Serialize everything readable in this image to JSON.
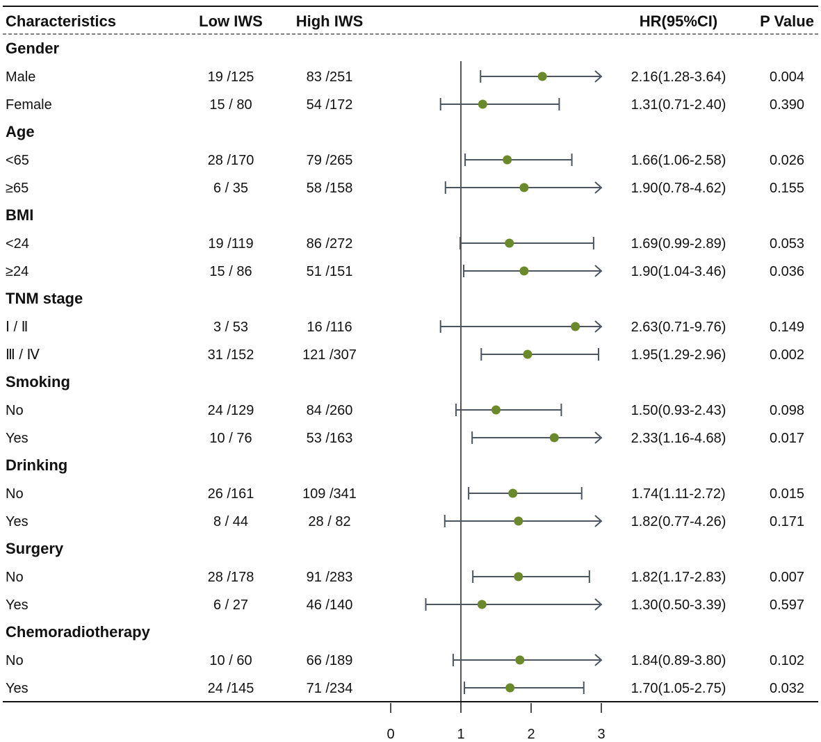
{
  "chart_data": {
    "type": "forest",
    "columns": {
      "characteristics": "Characteristics",
      "low": "Low IWS",
      "high": "High IWS",
      "hr": "HR(95%CI)",
      "p": "P Value"
    },
    "axis": {
      "xlim": [
        0,
        3
      ],
      "ticks": [
        0,
        1,
        2,
        3
      ],
      "reference_line": 1
    },
    "rows": [
      {
        "kind": "group",
        "label": "Gender"
      },
      {
        "kind": "item",
        "label": "Male",
        "low": "19 /125",
        "high": "83 /251",
        "hr": 2.16,
        "lo": 1.28,
        "hi": 3.64,
        "hr_text": "2.16(1.28-3.64)",
        "p": "0.004"
      },
      {
        "kind": "item",
        "label": "Female",
        "low": "15 / 80",
        "high": "54 /172",
        "hr": 1.31,
        "lo": 0.71,
        "hi": 2.4,
        "hr_text": "1.31(0.71-2.40)",
        "p": "0.390"
      },
      {
        "kind": "group",
        "label": "Age"
      },
      {
        "kind": "item",
        "label": "<65",
        "low": "28 /170",
        "high": "79 /265",
        "hr": 1.66,
        "lo": 1.06,
        "hi": 2.58,
        "hr_text": "1.66(1.06-2.58)",
        "p": "0.026"
      },
      {
        "kind": "item",
        "label": "≥65",
        "low": "6 / 35",
        "high": "58 /158",
        "hr": 1.9,
        "lo": 0.78,
        "hi": 4.62,
        "hr_text": "1.90(0.78-4.62)",
        "p": "0.155"
      },
      {
        "kind": "group",
        "label": "BMI"
      },
      {
        "kind": "item",
        "label": "<24",
        "low": "19 /119",
        "high": "86 /272",
        "hr": 1.69,
        "lo": 0.99,
        "hi": 2.89,
        "hr_text": "1.69(0.99-2.89)",
        "p": "0.053"
      },
      {
        "kind": "item",
        "label": "≥24",
        "low": "15 / 86",
        "high": "51 /151",
        "hr": 1.9,
        "lo": 1.04,
        "hi": 3.46,
        "hr_text": "1.90(1.04-3.46)",
        "p": "0.036"
      },
      {
        "kind": "group",
        "label": "TNM stage"
      },
      {
        "kind": "item",
        "label": "Ⅰ / Ⅱ",
        "low": "3 / 53",
        "high": "16 /116",
        "hr": 2.63,
        "lo": 0.71,
        "hi": 9.76,
        "hr_text": "2.63(0.71-9.76)",
        "p": "0.149"
      },
      {
        "kind": "item",
        "label": "Ⅲ / Ⅳ",
        "low": "31 /152",
        "high": "121 /307",
        "hr": 1.95,
        "lo": 1.29,
        "hi": 2.96,
        "hr_text": "1.95(1.29-2.96)",
        "p": "0.002"
      },
      {
        "kind": "group",
        "label": "Smoking"
      },
      {
        "kind": "item",
        "label": "No",
        "low": "24 /129",
        "high": "84 /260",
        "hr": 1.5,
        "lo": 0.93,
        "hi": 2.43,
        "hr_text": "1.50(0.93-2.43)",
        "p": "0.098"
      },
      {
        "kind": "item",
        "label": "Yes",
        "low": "10 / 76",
        "high": "53 /163",
        "hr": 2.33,
        "lo": 1.16,
        "hi": 4.68,
        "hr_text": "2.33(1.16-4.68)",
        "p": "0.017"
      },
      {
        "kind": "group",
        "label": "Drinking"
      },
      {
        "kind": "item",
        "label": "No",
        "low": "26 /161",
        "high": "109 /341",
        "hr": 1.74,
        "lo": 1.11,
        "hi": 2.72,
        "hr_text": "1.74(1.11-2.72)",
        "p": "0.015"
      },
      {
        "kind": "item",
        "label": "Yes",
        "low": "8 / 44",
        "high": "28 / 82",
        "hr": 1.82,
        "lo": 0.77,
        "hi": 4.26,
        "hr_text": "1.82(0.77-4.26)",
        "p": "0.171"
      },
      {
        "kind": "group",
        "label": "Surgery"
      },
      {
        "kind": "item",
        "label": "No",
        "low": "28 /178",
        "high": "91 /283",
        "hr": 1.82,
        "lo": 1.17,
        "hi": 2.83,
        "hr_text": "1.82(1.17-2.83)",
        "p": "0.007"
      },
      {
        "kind": "item",
        "label": "Yes",
        "low": "6 / 27",
        "high": "46 /140",
        "hr": 1.3,
        "lo": 0.5,
        "hi": 3.39,
        "hr_text": "1.30(0.50-3.39)",
        "p": "0.597"
      },
      {
        "kind": "group",
        "label": "Chemoradiotherapy"
      },
      {
        "kind": "item",
        "label": "No",
        "low": "10 / 60",
        "high": "66 /189",
        "hr": 1.84,
        "lo": 0.89,
        "hi": 3.8,
        "hr_text": "1.84(0.89-3.80)",
        "p": "0.102"
      },
      {
        "kind": "item",
        "label": "Yes",
        "low": "24 /145",
        "high": "71 /234",
        "hr": 1.7,
        "lo": 1.05,
        "hi": 2.75,
        "hr_text": "1.70(1.05-2.75)",
        "p": "0.032"
      }
    ]
  },
  "colors": {
    "point": "#6a8a2a",
    "ci_line": "#4a5560",
    "reference_line": "#555555",
    "text": "#111111"
  }
}
